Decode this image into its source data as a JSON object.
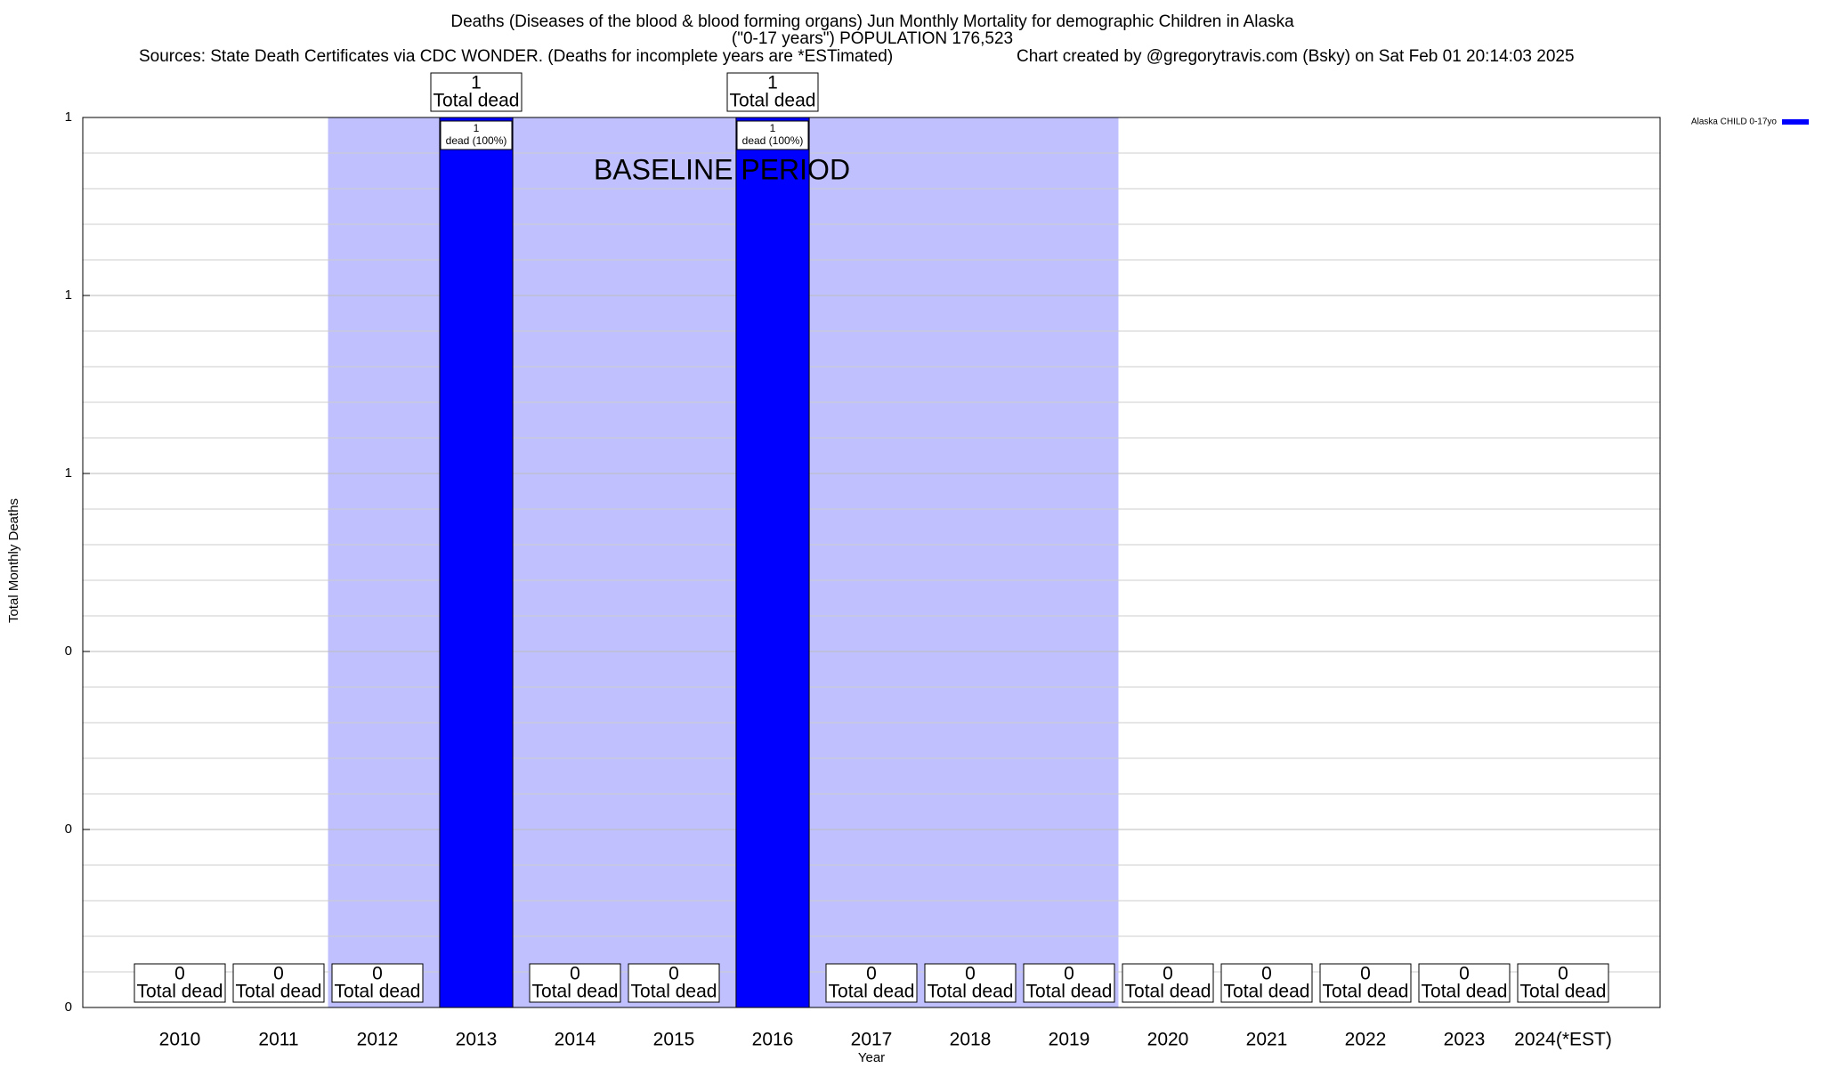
{
  "chart_data": {
    "type": "bar",
    "title": "Deaths (Diseases of the blood & blood forming organs) Jun Monthly Mortality for demographic Children in Alaska",
    "subtitle": "(\"0-17 years\") POPULATION 176,523",
    "source": "Sources: State Death Certificates via CDC WONDER. (Deaths for incomplete years are *ESTimated)",
    "credit": "Chart created by @gregorytravis.com (Bsky) on Sat Feb 01 20:14:03 2025",
    "x_label": "Year",
    "y_label": "Total Monthly Deaths",
    "categories": [
      "2010",
      "2011",
      "2012",
      "2013",
      "2014",
      "2015",
      "2016",
      "2017",
      "2018",
      "2019",
      "2020",
      "2021",
      "2022",
      "2023",
      "2024(*EST)"
    ],
    "series": [
      {
        "name": "Alaska CHILD 0-17yo",
        "color": "#0000ff",
        "values": [
          0,
          0,
          0,
          1,
          0,
          0,
          1,
          0,
          0,
          0,
          0,
          0,
          0,
          0,
          0
        ]
      }
    ],
    "total_label": "Total dead",
    "inner_labels": [
      null,
      null,
      null,
      "dead (100%)",
      null,
      null,
      "dead (100%)",
      null,
      null,
      null,
      null,
      null,
      null,
      null,
      null
    ],
    "baseline": {
      "label": "BASELINE PERIOD",
      "start": "2012",
      "end": "2019",
      "color": "#c0c0ff"
    },
    "ylim": [
      0,
      1
    ],
    "yticks": [
      0,
      {
        "value": 0.2,
        "label": "0"
      },
      {
        "value": 0.4,
        "label": "0"
      },
      {
        "value": 0.6,
        "label": "1"
      },
      {
        "value": 0.8,
        "label": "1"
      },
      1
    ],
    "grid": true,
    "legend": "top-right"
  }
}
